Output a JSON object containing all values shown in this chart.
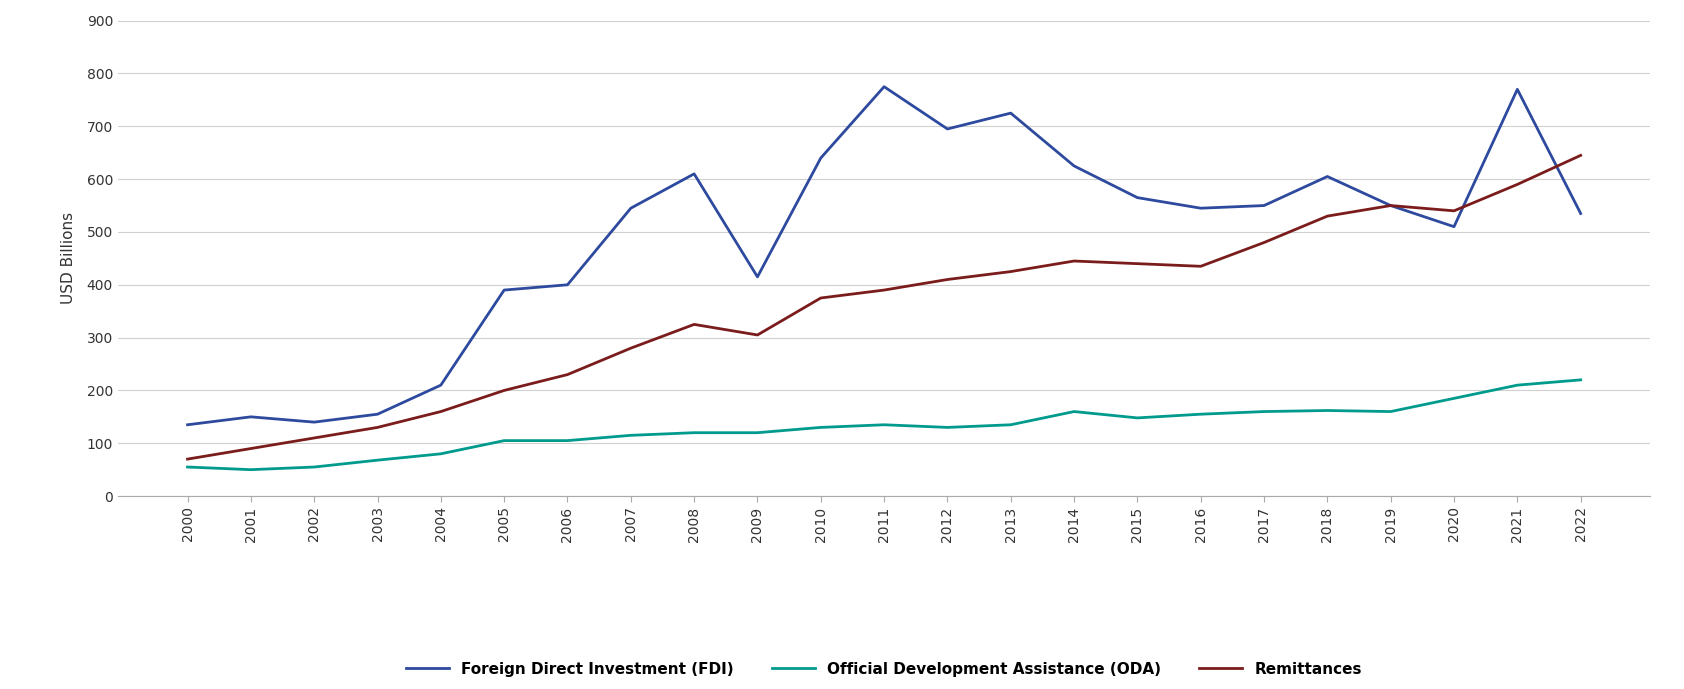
{
  "years": [
    2000,
    2001,
    2002,
    2003,
    2004,
    2005,
    2006,
    2007,
    2008,
    2009,
    2010,
    2011,
    2012,
    2013,
    2014,
    2015,
    2016,
    2017,
    2018,
    2019,
    2020,
    2021,
    2022
  ],
  "fdi": [
    135,
    150,
    140,
    155,
    210,
    390,
    400,
    545,
    610,
    415,
    640,
    775,
    695,
    725,
    625,
    565,
    545,
    550,
    605,
    550,
    510,
    770,
    535
  ],
  "oda": [
    55,
    50,
    55,
    68,
    80,
    105,
    105,
    115,
    120,
    120,
    130,
    135,
    130,
    135,
    160,
    148,
    155,
    160,
    162,
    160,
    185,
    210,
    220
  ],
  "remittances": [
    70,
    90,
    110,
    130,
    160,
    200,
    230,
    280,
    325,
    305,
    375,
    390,
    410,
    425,
    445,
    440,
    435,
    480,
    530,
    550,
    540,
    590,
    645
  ],
  "fdi_color": "#2E4A9E",
  "oda_color": "#009B8D",
  "remittances_color": "#7B1C1C",
  "ylabel": "USD Billions",
  "ylim": [
    0,
    900
  ],
  "yticks": [
    0,
    100,
    200,
    300,
    400,
    500,
    600,
    700,
    800,
    900
  ],
  "legend_labels": [
    "Foreign Direct Investment (FDI)",
    "Official Development Assistance (ODA)",
    "Remittances"
  ],
  "background_color": "#ffffff",
  "grid_color": "#d0d0d0",
  "line_width": 2.0,
  "figsize": [
    16.84,
    6.89
  ],
  "dpi": 100
}
